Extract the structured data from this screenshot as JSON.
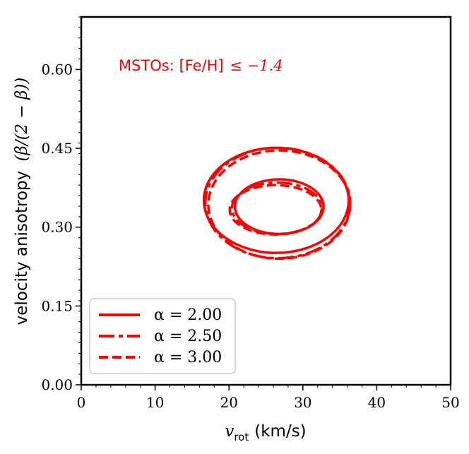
{
  "chart_data": {
    "type": "line",
    "title": "",
    "xlabel_math": "v",
    "xlabel_sub": "rot",
    "xlabel_unit": "(km/s)",
    "ylabel_text": "velocity anisotropy",
    "ylabel_math": "(β/(2 − β))",
    "xlim": [
      0,
      50
    ],
    "ylim": [
      0.0,
      0.7
    ],
    "xticks": [
      0,
      10,
      20,
      30,
      40,
      50
    ],
    "yticks": [
      0.0,
      0.15,
      0.3,
      0.45,
      0.6
    ],
    "xtick_labels": [
      "0",
      "10",
      "20",
      "30",
      "40",
      "50"
    ],
    "ytick_labels": [
      "0.00",
      "0.15",
      "0.30",
      "0.45",
      "0.60"
    ],
    "annotation": {
      "text": "MSTOs: [Fe/H]",
      "math": "≤ −1.4",
      "x": 5,
      "y": 0.605,
      "color": "#ff0000"
    },
    "color": "#ff0000",
    "series": [
      {
        "name": "α = 2.00",
        "linestyle": "solid",
        "contours": [
          {
            "level": "inner",
            "cx": 26.8,
            "cy": 0.339,
            "rx": 6.0,
            "ry": 0.052
          },
          {
            "level": "outer",
            "cx": 26.4,
            "cy": 0.351,
            "rx": 9.8,
            "ry": 0.1
          }
        ]
      },
      {
        "name": "α = 2.50",
        "linestyle": "dashdot",
        "contours": [
          {
            "level": "inner",
            "cx": 26.5,
            "cy": 0.336,
            "rx": 6.1,
            "ry": 0.049
          },
          {
            "level": "outer",
            "cx": 26.6,
            "cy": 0.346,
            "rx": 9.8,
            "ry": 0.105
          }
        ]
      },
      {
        "name": "α = 3.00",
        "linestyle": "dashed",
        "contours": [
          {
            "level": "inner",
            "cx": 26.3,
            "cy": 0.333,
            "rx": 6.2,
            "ry": 0.047
          },
          {
            "level": "outer",
            "cx": 26.8,
            "cy": 0.343,
            "rx": 9.6,
            "ry": 0.103
          }
        ]
      }
    ],
    "legend": {
      "position": "lower-left",
      "entries": [
        "α = 2.00",
        "α = 2.50",
        "α = 3.00"
      ]
    }
  }
}
